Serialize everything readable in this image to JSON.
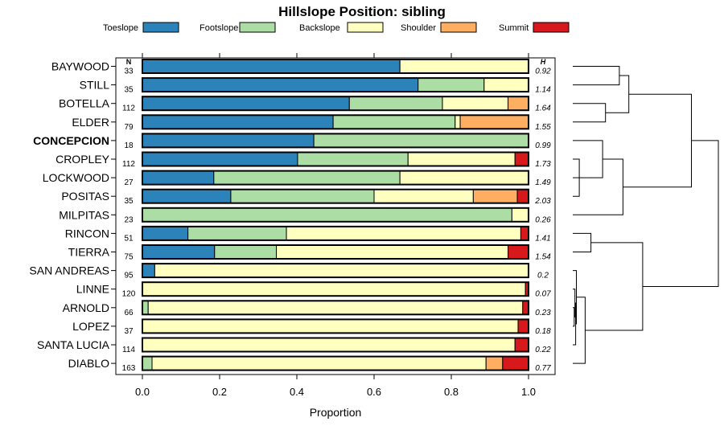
{
  "chart_data": {
    "type": "bar",
    "orientation": "horizontal",
    "stacked": true,
    "title": "Hillslope Position: sibling",
    "xlabel": "Proportion",
    "xlim": [
      0,
      1
    ],
    "xticks": [
      0.0,
      0.2,
      0.4,
      0.6,
      0.8,
      1.0
    ],
    "xtick_labels": [
      "0.0",
      "0.2",
      "0.4",
      "0.6",
      "0.8",
      "1.0"
    ],
    "n_header": "N",
    "h_header": "H",
    "legend": [
      {
        "name": "Toeslope",
        "color": "#2b83ba"
      },
      {
        "name": "Footslope",
        "color": "#abdda4"
      },
      {
        "name": "Backslope",
        "color": "#ffffbf"
      },
      {
        "name": "Shoulder",
        "color": "#fdae61"
      },
      {
        "name": "Summit",
        "color": "#d7191c"
      }
    ],
    "rows": [
      {
        "name": "BAYWOOD",
        "n": "33",
        "h": "0.92",
        "bold": false,
        "values": [
          0.667,
          0,
          0.333,
          0,
          0
        ]
      },
      {
        "name": "STILL",
        "n": "35",
        "h": "1.14",
        "bold": false,
        "values": [
          0.714,
          0.171,
          0.115,
          0,
          0
        ]
      },
      {
        "name": "BOTELLA",
        "n": "112",
        "h": "1.64",
        "bold": false,
        "values": [
          0.536,
          0.241,
          0.17,
          0.053,
          0
        ]
      },
      {
        "name": "ELDER",
        "n": "79",
        "h": "1.55",
        "bold": false,
        "values": [
          0.494,
          0.316,
          0.013,
          0.177,
          0
        ]
      },
      {
        "name": "CONCEPCION",
        "n": "18",
        "h": "0.99",
        "bold": true,
        "values": [
          0.444,
          0.556,
          0,
          0,
          0
        ]
      },
      {
        "name": "CROPLEY",
        "n": "112",
        "h": "1.73",
        "bold": false,
        "values": [
          0.402,
          0.286,
          0.277,
          0,
          0.035
        ]
      },
      {
        "name": "LOCKWOOD",
        "n": "27",
        "h": "1.49",
        "bold": false,
        "values": [
          0.185,
          0.482,
          0.333,
          0,
          0
        ]
      },
      {
        "name": "POSITAS",
        "n": "35",
        "h": "2.03",
        "bold": false,
        "values": [
          0.229,
          0.371,
          0.257,
          0.114,
          0.029
        ]
      },
      {
        "name": "MILPITAS",
        "n": "23",
        "h": "0.26",
        "bold": false,
        "values": [
          0,
          0.957,
          0.043,
          0,
          0
        ]
      },
      {
        "name": "RINCON",
        "n": "51",
        "h": "1.41",
        "bold": false,
        "values": [
          0.118,
          0.255,
          0.607,
          0,
          0.02
        ]
      },
      {
        "name": "TIERRA",
        "n": "75",
        "h": "1.54",
        "bold": false,
        "values": [
          0.187,
          0.16,
          0.6,
          0,
          0.053
        ]
      },
      {
        "name": "SAN ANDREAS",
        "n": "95",
        "h": "0.2",
        "bold": false,
        "values": [
          0.032,
          0,
          0.968,
          0,
          0
        ]
      },
      {
        "name": "LINNE",
        "n": "120",
        "h": "0.07",
        "bold": false,
        "values": [
          0,
          0,
          0.992,
          0,
          0.008
        ]
      },
      {
        "name": "ARNOLD",
        "n": "66",
        "h": "0.23",
        "bold": false,
        "values": [
          0,
          0.015,
          0.97,
          0,
          0.015
        ]
      },
      {
        "name": "LOPEZ",
        "n": "37",
        "h": "0.18",
        "bold": false,
        "values": [
          0,
          0,
          0.973,
          0,
          0.027
        ]
      },
      {
        "name": "SANTA LUCIA",
        "n": "114",
        "h": "0.22",
        "bold": false,
        "values": [
          0,
          0,
          0.965,
          0,
          0.035
        ]
      },
      {
        "name": "DIABLO",
        "n": "163",
        "h": "0.77",
        "bold": false,
        "values": [
          0,
          0.025,
          0.865,
          0.043,
          0.067
        ]
      }
    ],
    "dendrogram": {
      "type": "hierarchical-clustering",
      "leaf_order": [
        "BAYWOOD",
        "STILL",
        "BOTELLA",
        "ELDER",
        "CONCEPCION",
        "CROPLEY",
        "LOCKWOOD",
        "POSITAS",
        "MILPITAS",
        "RINCON",
        "TIERRA",
        "SAN ANDREAS",
        "LINNE",
        "ARNOLD",
        "LOPEZ",
        "SANTA LUCIA",
        "DIABLO"
      ],
      "merges": [
        [
          0,
          1,
          0.32
        ],
        [
          2,
          3,
          0.225
        ],
        [
          -1,
          -2,
          0.385
        ],
        [
          5,
          7,
          0.045
        ],
        [
          6,
          -4,
          0.095
        ],
        [
          4,
          -5,
          0.205
        ],
        [
          -6,
          8,
          0.345
        ],
        [
          -3,
          -7,
          0.815
        ],
        [
          9,
          10,
          0.125
        ],
        [
          13,
          14,
          0.01
        ],
        [
          12,
          -10,
          0.015
        ],
        [
          -11,
          15,
          0.02
        ],
        [
          11,
          -12,
          0.025
        ],
        [
          -13,
          16,
          0.085
        ],
        [
          -9,
          -14,
          0.48
        ],
        [
          -8,
          -15,
          1.0
        ]
      ]
    }
  }
}
